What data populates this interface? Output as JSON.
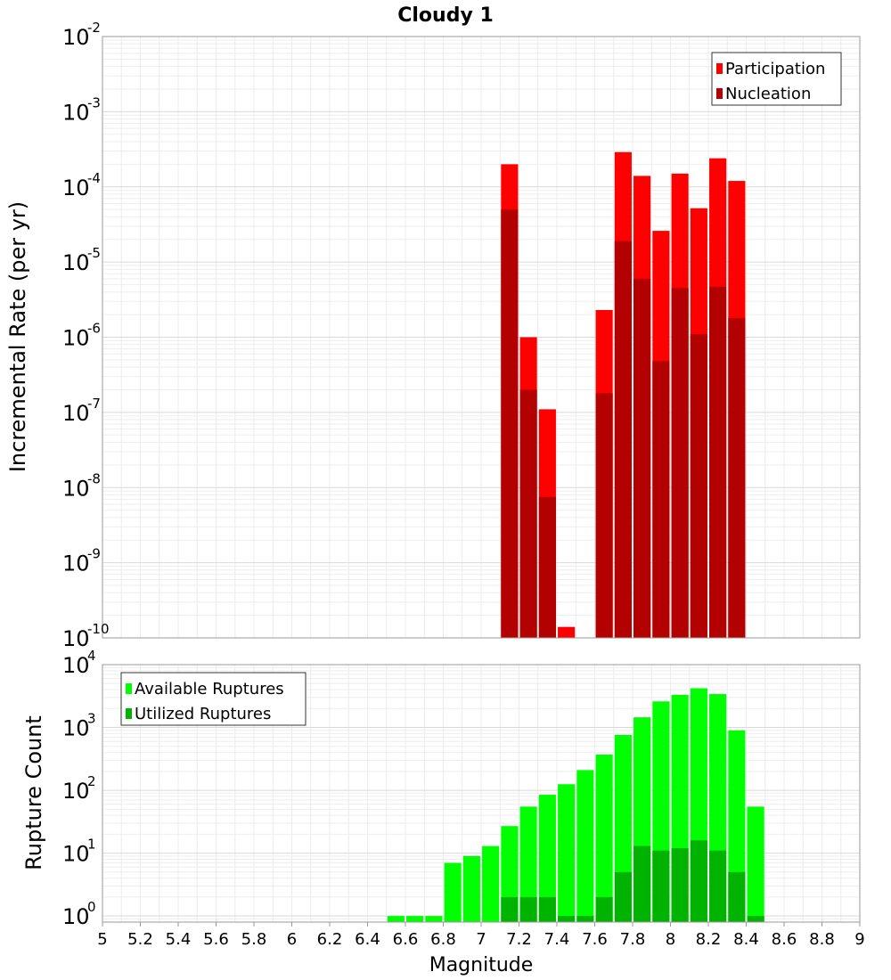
{
  "chart_data": [
    {
      "type": "bar",
      "title": "Cloudy 1",
      "ylabel": "Incremental Rate (per yr)",
      "yscale": "log",
      "ylim": [
        1e-10,
        0.01
      ],
      "xlim": [
        5,
        9
      ],
      "ytick_labels": [
        "10",
        "10",
        "10",
        "10",
        "10",
        "10",
        "10",
        "10",
        "10"
      ],
      "ytick_exponents": [
        "-10",
        "-9",
        "-8",
        "-7",
        "-6",
        "-5",
        "-4",
        "-3",
        "-2"
      ],
      "legend_position": "top-right",
      "series": [
        {
          "name": "Participation",
          "color": "#ff0000",
          "x": [
            7.15,
            7.25,
            7.35,
            7.45,
            7.65,
            7.75,
            7.85,
            7.95,
            8.05,
            8.15,
            8.25,
            8.35
          ],
          "values": [
            0.0002,
            1e-06,
            1.1e-07,
            1.4e-10,
            2.3e-06,
            0.00029,
            0.00014,
            2.6e-05,
            0.00015,
            5.2e-05,
            0.00024,
            0.00012
          ]
        },
        {
          "name": "Nucleation",
          "color": "#b30000",
          "x": [
            7.15,
            7.25,
            7.35,
            7.65,
            7.75,
            7.85,
            7.95,
            8.05,
            8.15,
            8.25,
            8.35
          ],
          "values": [
            5e-05,
            2e-07,
            7.5e-09,
            1.8e-07,
            1.9e-05,
            6e-06,
            4.8e-07,
            4.5e-06,
            1.1e-06,
            4.7e-06,
            1.8e-06
          ]
        }
      ]
    },
    {
      "type": "bar",
      "xlabel": "Magnitude",
      "ylabel": "Rupture Count",
      "yscale": "log",
      "ylim": [
        0.8,
        10000.0
      ],
      "xlim": [
        5,
        9
      ],
      "xticks": [
        "5",
        "5.2",
        "5.4",
        "5.6",
        "5.8",
        "6",
        "6.2",
        "6.4",
        "6.6",
        "6.8",
        "7",
        "7.2",
        "7.4",
        "7.6",
        "7.8",
        "8",
        "8.2",
        "8.4",
        "8.6",
        "8.8",
        "9"
      ],
      "ytick_labels": [
        "10",
        "10",
        "10",
        "10",
        "10"
      ],
      "ytick_exponents": [
        "0",
        "1",
        "2",
        "3",
        "4"
      ],
      "legend_position": "top-left",
      "series": [
        {
          "name": "Available Ruptures",
          "color": "#00ff00",
          "x": [
            6.55,
            6.65,
            6.75,
            6.85,
            6.95,
            7.05,
            7.15,
            7.25,
            7.35,
            7.45,
            7.55,
            7.65,
            7.75,
            7.85,
            7.95,
            8.05,
            8.15,
            8.25,
            8.35,
            8.45
          ],
          "values": [
            1,
            1,
            1,
            7,
            9,
            13,
            27,
            55,
            85,
            125,
            210,
            370,
            760,
            1450,
            2600,
            3300,
            4200,
            3400,
            900,
            55
          ]
        },
        {
          "name": "Utilized Ruptures",
          "color": "#00b300",
          "x": [
            7.15,
            7.25,
            7.35,
            7.45,
            7.55,
            7.65,
            7.75,
            7.85,
            7.95,
            8.05,
            8.15,
            8.25,
            8.35,
            8.45
          ],
          "values": [
            2,
            2,
            2,
            1,
            1,
            2,
            5,
            13,
            11,
            12,
            16,
            11,
            5,
            1
          ]
        }
      ]
    }
  ]
}
